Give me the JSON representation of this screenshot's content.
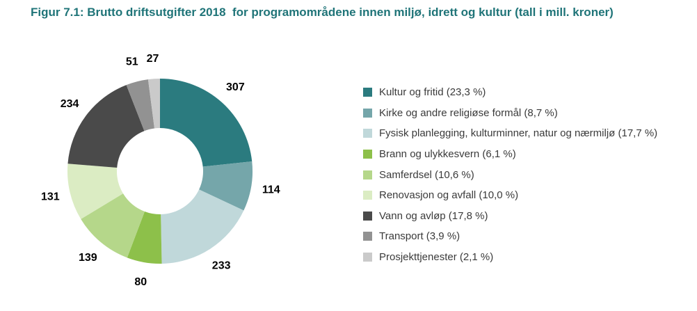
{
  "title": "Figur 7.1: Brutto driftsutgifter 2018  for programområdene innen miljø, idrett og kultur (tall i mill. kroner)",
  "colors": {
    "background": "#FFFFFF",
    "title_text": "#1F7478",
    "value_label_text": "#000000",
    "legend_text": "#3A3A3A"
  },
  "chart_data": {
    "type": "pie",
    "subtype": "donut",
    "title": "Brutto driftsutgifter 2018 for programområdene innen miljø, idrett og kultur",
    "unit": "mill. kroner",
    "total": 1316,
    "start_angle_deg": 0,
    "direction": "clockwise",
    "inner_radius_ratio": 0.466,
    "legend_position": "right",
    "categories": [
      "Kultur og fritid",
      "Kirke og andre religiøse formål",
      "Fysisk planlegging, kulturminner, natur og nærmiljø",
      "Brann og ulykkesvern",
      "Samferdsel",
      "Renovasjon og avfall",
      "Vann og avløp",
      "Transport",
      "Prosjekttjenester"
    ],
    "values": [
      307,
      114,
      233,
      80,
      139,
      131,
      234,
      51,
      27
    ],
    "percent_labels": [
      "23,3 %",
      "8,7 %",
      "17,7 %",
      "6,1 %",
      "10,6 %",
      "10,0 %",
      "17,8 %",
      "3,9 %",
      "2,1 %"
    ],
    "legend_labels": [
      "Kultur og fritid (23,3 %)",
      "Kirke og andre religiøse formål (8,7 %)",
      "Fysisk planlegging, kulturminner, natur og nærmiljø (17,7 %)",
      "Brann og ulykkesvern (6,1 %)",
      "Samferdsel (10,6 %)",
      "Renovasjon og avfall (10,0 %)",
      "Vann og avløp (17,8 %)",
      "Transport (3,9 %)",
      "Prosjekttjenester (2,1 %)"
    ],
    "slice_colors": [
      "#2B7B7F",
      "#75A6AA",
      "#C0D8DA",
      "#8DC04A",
      "#B5D78A",
      "#DBECC3",
      "#4A4A4A",
      "#929292",
      "#CACACA"
    ]
  }
}
